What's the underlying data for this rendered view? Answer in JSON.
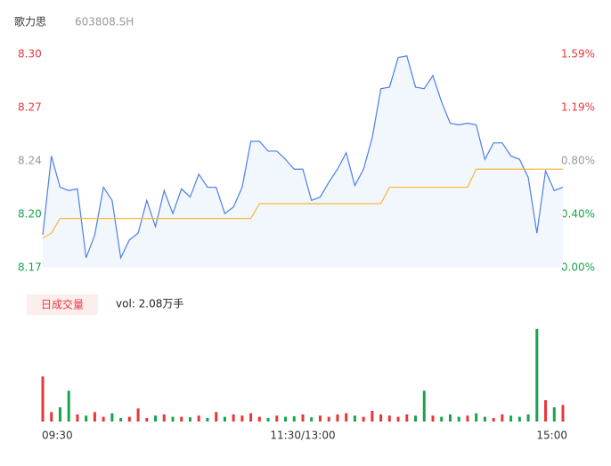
{
  "chart_data": {
    "type": "intraday",
    "title": "歌力思",
    "subtitle": "603808.SH",
    "volume_title": "日成交量",
    "volume_label": "vol: 2.08万手",
    "xlim": [
      0,
      240
    ],
    "xticks": [
      {
        "value": 0,
        "label": "09:30"
      },
      {
        "value": 120,
        "label": "11:30/13:00"
      },
      {
        "value": 240,
        "label": "15:00"
      }
    ],
    "ylim": [
      8.17,
      8.3
    ],
    "yticks": [
      {
        "value": 8.17,
        "label": "8.17"
      },
      {
        "value": 8.2025,
        "label": "8.20"
      },
      {
        "value": 8.235,
        "label": "8.24"
      },
      {
        "value": 8.2675,
        "label": "8.27"
      },
      {
        "value": 8.3,
        "label": "8.30"
      }
    ],
    "y2lim": [
      0,
      1.59
    ],
    "y2ticks": [
      {
        "value": 0,
        "label": "0.00%"
      },
      {
        "value": 0.3975,
        "label": "0.40%"
      },
      {
        "value": 0.795,
        "label": "0.80%"
      },
      {
        "value": 1.1925,
        "label": "1.19%"
      },
      {
        "value": 1.59,
        "label": "1.59%"
      }
    ],
    "ytick_colors": [
      "#1aa34a",
      "#1aa34a",
      "#999999",
      "#e8363a",
      "#e8363a"
    ],
    "up_color": "#e8363a",
    "down_color": "#1aa34a",
    "area_color": "#f2f6fd",
    "x": [
      0,
      4,
      8,
      12,
      16,
      20,
      24,
      28,
      32,
      36,
      40,
      44,
      48,
      52,
      56,
      60,
      64,
      68,
      72,
      76,
      80,
      84,
      88,
      92,
      96,
      100,
      104,
      108,
      112,
      116,
      120,
      124,
      128,
      132,
      136,
      140,
      144,
      148,
      152,
      156,
      160,
      164,
      168,
      172,
      176,
      180,
      184,
      188,
      192,
      196,
      200,
      204,
      208,
      212,
      216,
      220,
      224,
      228,
      232,
      236,
      240
    ],
    "series": [
      {
        "name": "price",
        "color": "#4e7fe8",
        "values": [
          8.19,
          8.238,
          8.219,
          8.217,
          8.218,
          8.176,
          8.19,
          8.219,
          8.211,
          8.176,
          8.187,
          8.191,
          8.211,
          8.195,
          8.217,
          8.203,
          8.218,
          8.213,
          8.227,
          8.219,
          8.219,
          8.203,
          8.207,
          8.219,
          8.247,
          8.247,
          8.241,
          8.241,
          8.236,
          8.23,
          8.23,
          8.211,
          8.213,
          8.222,
          8.23,
          8.24,
          8.22,
          8.23,
          8.249,
          8.279,
          8.28,
          8.298,
          8.299,
          8.28,
          8.279,
          8.287,
          8.271,
          8.258,
          8.257,
          8.258,
          8.257,
          8.236,
          8.246,
          8.246,
          8.238,
          8.236,
          8.225,
          8.191,
          8.229,
          8.217,
          8.219
        ]
      },
      {
        "name": "average",
        "color": "#f5b83d",
        "values": [
          8.188,
          8.191,
          8.2,
          8.2,
          8.2,
          8.2,
          8.2,
          8.2,
          8.2,
          8.2,
          8.2,
          8.2,
          8.2,
          8.2,
          8.2,
          8.2,
          8.2,
          8.2,
          8.2,
          8.2,
          8.2,
          8.2,
          8.2,
          8.2,
          8.2,
          8.209,
          8.209,
          8.209,
          8.209,
          8.209,
          8.209,
          8.209,
          8.209,
          8.209,
          8.209,
          8.209,
          8.209,
          8.209,
          8.209,
          8.209,
          8.219,
          8.219,
          8.219,
          8.219,
          8.219,
          8.219,
          8.219,
          8.219,
          8.219,
          8.219,
          8.23,
          8.23,
          8.23,
          8.23,
          8.23,
          8.23,
          8.23,
          8.23,
          8.23,
          8.23,
          8.23
        ]
      }
    ],
    "volume": [
      190,
      40,
      60,
      130,
      30,
      25,
      40,
      20,
      35,
      15,
      20,
      55,
      15,
      25,
      30,
      20,
      20,
      18,
      25,
      15,
      40,
      20,
      30,
      25,
      35,
      20,
      15,
      25,
      20,
      22,
      30,
      18,
      25,
      20,
      30,
      35,
      25,
      20,
      45,
      30,
      25,
      20,
      30,
      25,
      130,
      25,
      20,
      30,
      20,
      25,
      35,
      20,
      15,
      30,
      25,
      20,
      30,
      390,
      90,
      60,
      70
    ]
  }
}
